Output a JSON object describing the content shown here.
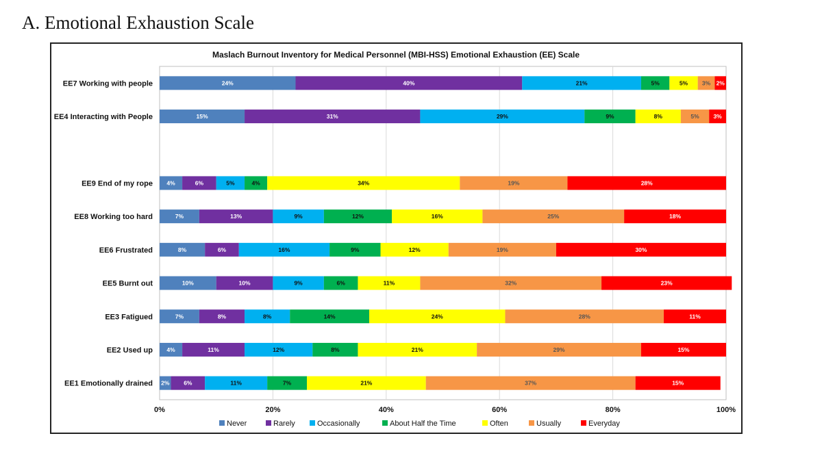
{
  "heading": "A.  Emotional Exhaustion Scale",
  "chart_data": {
    "type": "bar",
    "orientation": "horizontal-stacked-100",
    "title": "Maslach Burnout Inventory for Medical Personnel (MBI-HSS)  Emotional Exhaustion (EE) Scale",
    "xlim": [
      0,
      100
    ],
    "x_ticks": [
      "0%",
      "20%",
      "40%",
      "60%",
      "80%",
      "100%"
    ],
    "grid": true,
    "legend_position": "bottom",
    "categories": [
      "EE7 Working with people",
      "EE4 Interacting with People",
      "",
      "EE9 End of my rope",
      "EE8 Working too hard",
      "EE6 Frustrated",
      "EE5 Burnt out",
      "EE3 Fatigued",
      "EE2 Used up",
      "EE1 Emotionally drained"
    ],
    "series": [
      {
        "name": "Never",
        "color": "#4F81BD",
        "text_color": "#ffffff",
        "values": [
          24,
          15,
          null,
          4,
          7,
          8,
          10,
          7,
          4,
          2
        ]
      },
      {
        "name": "Rarely",
        "color": "#7030A0",
        "text_color": "#ffffff",
        "values": [
          40,
          31,
          null,
          6,
          13,
          6,
          10,
          8,
          11,
          6
        ]
      },
      {
        "name": "Occasionally",
        "color": "#00B0F0",
        "text_color": "#111111",
        "values": [
          21,
          29,
          null,
          5,
          9,
          16,
          9,
          8,
          12,
          11
        ]
      },
      {
        "name": "About Half the Time",
        "color": "#00B050",
        "text_color": "#111111",
        "values": [
          5,
          9,
          null,
          4,
          12,
          9,
          6,
          14,
          8,
          7
        ]
      },
      {
        "name": "Often",
        "color": "#FFFF00",
        "text_color": "#111111",
        "values": [
          5,
          8,
          null,
          34,
          16,
          12,
          11,
          24,
          21,
          21
        ]
      },
      {
        "name": "Usually",
        "color": "#F79646",
        "text_color": "#555555",
        "values": [
          3,
          5,
          null,
          19,
          25,
          19,
          32,
          28,
          29,
          37
        ]
      },
      {
        "name": "Everyday",
        "color": "#FF0000",
        "text_color": "#ffffff",
        "values": [
          2,
          3,
          null,
          28,
          18,
          30,
          23,
          11,
          15,
          15
        ]
      }
    ]
  }
}
